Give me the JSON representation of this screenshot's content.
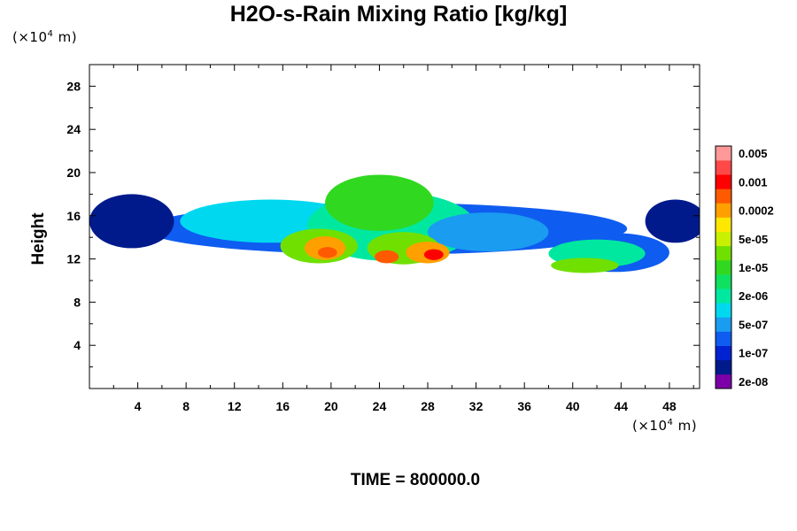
{
  "chart_data": {
    "type": "heatmap",
    "title": "H2O-s-Rain Mixing Ratio [kg/kg]",
    "ylabel": "Height",
    "xlabel": "",
    "x_unit_prefix": "(×10",
    "x_unit_exp": "4",
    "x_unit_suffix": " m)",
    "y_unit_prefix": "(×10",
    "y_unit_exp": "4",
    "y_unit_suffix": " m)",
    "footer": "TIME = 800000.0",
    "xlim": [
      0,
      50.5
    ],
    "ylim": [
      0,
      30
    ],
    "x_ticks": [
      4,
      8,
      12,
      16,
      20,
      24,
      28,
      32,
      36,
      40,
      44,
      48
    ],
    "y_ticks": [
      4,
      8,
      12,
      16,
      20,
      24,
      28
    ],
    "x_minor_step": 2,
    "y_minor_step": 2,
    "colorbar": {
      "colors": [
        "#7b00a8",
        "#001a8c",
        "#0022d0",
        "#0f5cf0",
        "#1a9cf0",
        "#00d8f0",
        "#00e8a0",
        "#10e060",
        "#30d820",
        "#70e000",
        "#c8f000",
        "#ffe800",
        "#ffa000",
        "#ff5a00",
        "#ff0000",
        "#ff4848",
        "#ff9898"
      ],
      "labels": [
        "2e-08",
        "1e-07",
        "5e-07",
        "2e-06",
        "1e-05",
        "5e-05",
        "0.0002",
        "0.001",
        "0.005"
      ]
    },
    "field_blobs": [
      {
        "x": 24.5,
        "y": 14.8,
        "rx": 20,
        "ry": 2.4,
        "level": 3
      },
      {
        "x": 3.5,
        "y": 15.5,
        "rx": 3.5,
        "ry": 2.5,
        "level": 1
      },
      {
        "x": 48.5,
        "y": 15.5,
        "rx": 2.5,
        "ry": 2.0,
        "level": 1
      },
      {
        "x": 43.5,
        "y": 12.6,
        "rx": 4.5,
        "ry": 1.8,
        "level": 3
      },
      {
        "x": 15,
        "y": 15.5,
        "rx": 7.5,
        "ry": 2.0,
        "level": 5
      },
      {
        "x": 25,
        "y": 15.0,
        "rx": 7.0,
        "ry": 3.2,
        "level": 6
      },
      {
        "x": 33,
        "y": 14.5,
        "rx": 5.0,
        "ry": 1.8,
        "level": 4
      },
      {
        "x": 42,
        "y": 12.5,
        "rx": 4.0,
        "ry": 1.3,
        "level": 6
      },
      {
        "x": 24,
        "y": 17.2,
        "rx": 4.5,
        "ry": 2.6,
        "level": 8
      },
      {
        "x": 19,
        "y": 13.2,
        "rx": 3.2,
        "ry": 1.6,
        "level": 9
      },
      {
        "x": 26,
        "y": 13.0,
        "rx": 3.0,
        "ry": 1.5,
        "level": 9
      },
      {
        "x": 41,
        "y": 11.4,
        "rx": 2.8,
        "ry": 0.7,
        "level": 9
      },
      {
        "x": 19.5,
        "y": 13.0,
        "rx": 1.7,
        "ry": 1.1,
        "level": 12
      },
      {
        "x": 28,
        "y": 12.6,
        "rx": 1.8,
        "ry": 1.0,
        "level": 12
      },
      {
        "x": 24.6,
        "y": 12.2,
        "rx": 1.0,
        "ry": 0.6,
        "level": 13
      },
      {
        "x": 28.5,
        "y": 12.4,
        "rx": 0.8,
        "ry": 0.5,
        "level": 14
      },
      {
        "x": 19.7,
        "y": 12.6,
        "rx": 0.8,
        "ry": 0.5,
        "level": 13
      }
    ]
  }
}
